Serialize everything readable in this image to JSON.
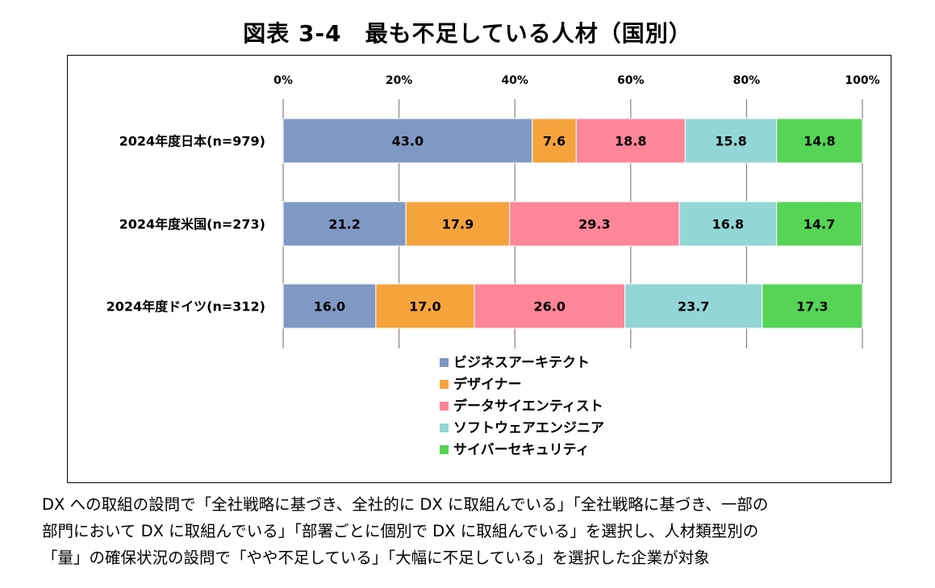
{
  "title": "図表 3-4　最も不足している人材（国別）",
  "note_lines": [
    "DX への取組の設問で「全社戦略に基づき、全社的に DX に取組んでいる」「全社戦略に基づき、一部の",
    "部門において DX に取組んでいる」「部署ごとに個別で DX に取組んでいる」を選択し、人材類型別の",
    "「量」の確保状況の設問で「やや不足している」「大幅に不足している」を選択した企業が対象"
  ],
  "chart_data": {
    "type": "bar",
    "orientation": "horizontal",
    "stacked": true,
    "categories": [
      "2024年度日本(n=979)",
      "2024年度米国(n=273)",
      "2024年度ドイツ(n=312)"
    ],
    "series": [
      {
        "name": "ビジネスアーキテクト",
        "color": "#7f99c4",
        "values": [
          43.0,
          21.2,
          16.0
        ]
      },
      {
        "name": "デザイナー",
        "color": "#f5a33c",
        "values": [
          7.6,
          17.9,
          17.0
        ]
      },
      {
        "name": "データサイエンティスト",
        "color": "#ff8598",
        "values": [
          18.8,
          29.3,
          26.0
        ]
      },
      {
        "name": "ソフトウェアエンジニア",
        "color": "#92d6d6",
        "values": [
          15.8,
          16.8,
          23.7
        ]
      },
      {
        "name": "サイバーセキュリティ",
        "color": "#55d455",
        "values": [
          14.8,
          14.7,
          17.3
        ]
      }
    ],
    "xticks": [
      "0%",
      "20%",
      "40%",
      "60%",
      "80%",
      "100%"
    ],
    "xlim": [
      0,
      100
    ],
    "grid": true,
    "legend_position": "bottom"
  }
}
